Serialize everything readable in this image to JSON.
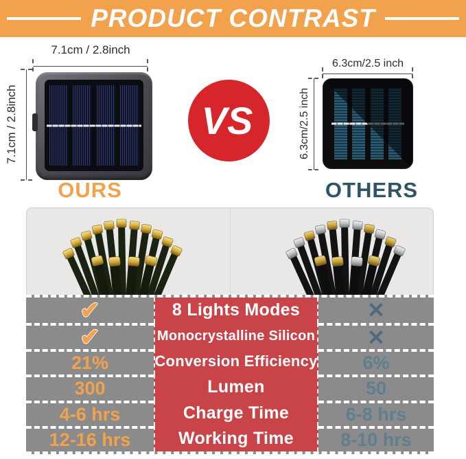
{
  "header": {
    "title": "PRODUCT CONTRAST"
  },
  "comparison": {
    "vs_label": "VS",
    "ours": {
      "name": "OURS",
      "width_dim": "7.1cm / 2.8inch",
      "height_dim": "7.1cm / 2.8inch"
    },
    "others": {
      "name": "OTHERS",
      "width_dim": "6.3cm/2.5 inch",
      "height_dim": "6.3cm/2.5 inch"
    }
  },
  "icons": {
    "check": "✔",
    "cross": "✕"
  },
  "table": {
    "rows": [
      {
        "ours": "check",
        "feature": "8 Lights Modes",
        "others": "cross"
      },
      {
        "ours": "check",
        "feature": "Monocrystalline Silicon",
        "others": "cross"
      },
      {
        "ours": "21%",
        "feature": "Conversion Efficiency",
        "others": "6%"
      },
      {
        "ours": "300",
        "feature": "Lumen",
        "others": "50"
      },
      {
        "ours": "4-6 hrs",
        "feature": "Charge Time",
        "others": "6-8 hrs"
      },
      {
        "ours": "12-16 hrs",
        "feature": "Working Time",
        "others": "8-10 hrs"
      }
    ]
  },
  "colors": {
    "banner_orange": "#F2A24C",
    "accent_orange": "#F2A24C",
    "vs_red": "#D6252B",
    "table_red": "#C94449",
    "table_gray": "#8B8B8B",
    "others_slate": "#2E5468",
    "others_value": "#5F7F90"
  }
}
